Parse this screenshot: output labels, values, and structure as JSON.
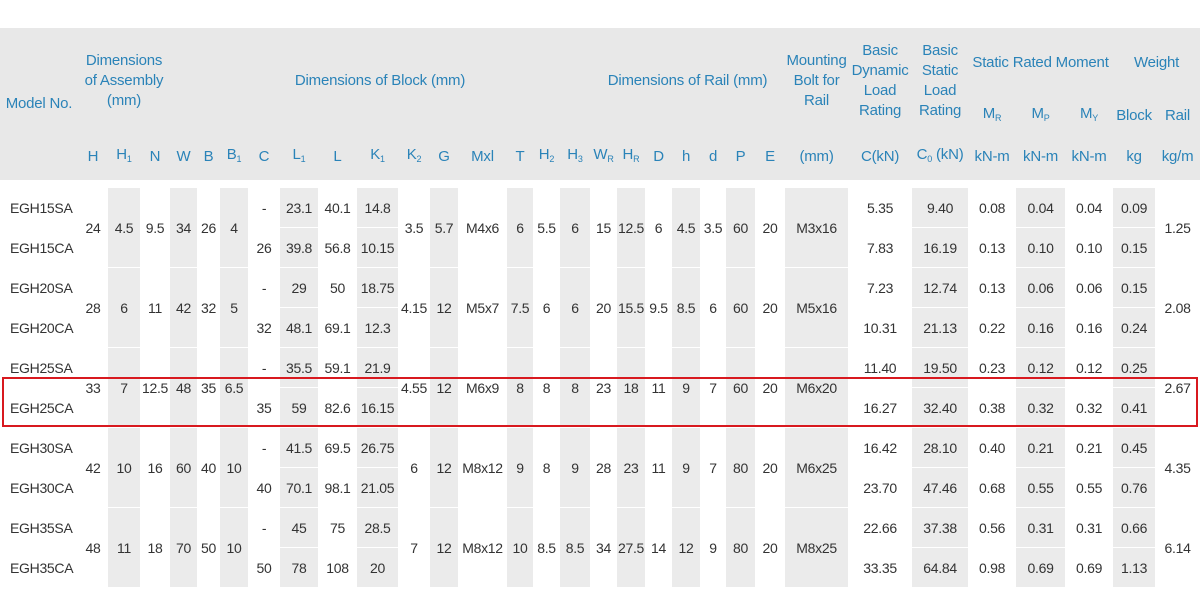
{
  "header": {
    "model": "Model No.",
    "assembly": "Dimensions of Assembly (mm)",
    "block": "Dimensions of Block (mm)",
    "rail": "Dimensions of Rail (mm)",
    "bolt": "Mounting Bolt for Rail",
    "dynamic": "Basic Dynamic Load Rating",
    "static": "Basic Static Load Rating",
    "moment": "Static Rated Moment",
    "weight": "Weight",
    "symbols": [
      {
        "t": "H"
      },
      {
        "t": "H",
        "s": "1"
      },
      {
        "t": "N"
      },
      {
        "t": "W"
      },
      {
        "t": "B"
      },
      {
        "t": "B",
        "s": "1"
      },
      {
        "t": "C"
      },
      {
        "t": "L",
        "s": "1"
      },
      {
        "t": "L"
      },
      {
        "t": "K",
        "s": "1"
      },
      {
        "t": "K",
        "s": "2"
      },
      {
        "t": "G"
      },
      {
        "t": "Mxl"
      },
      {
        "t": "T"
      },
      {
        "t": "H",
        "s": "2"
      },
      {
        "t": "H",
        "s": "3"
      },
      {
        "t": "W",
        "s": "R"
      },
      {
        "t": "H",
        "s": "R"
      },
      {
        "t": "D"
      },
      {
        "t": "h"
      },
      {
        "t": "d"
      },
      {
        "t": "P"
      },
      {
        "t": "E"
      },
      {
        "t": "(mm)"
      },
      {
        "t": "C(kN)"
      },
      {
        "t": "C",
        "s": "0",
        "u": " (kN)"
      }
    ],
    "moment_symbols": [
      {
        "t": "M",
        "s": "R"
      },
      {
        "t": "M",
        "s": "P"
      },
      {
        "t": "M",
        "s": "Y"
      }
    ],
    "moment_units": [
      "kN-m",
      "kN-m",
      "kN-m"
    ],
    "weight_symbols": [
      "Block",
      "Rail"
    ],
    "weight_units": [
      "kg",
      "kg/m"
    ]
  },
  "groups": [
    {
      "shared": [
        "24",
        "4.5",
        "9.5",
        "34",
        "26",
        "4"
      ],
      "mid": [
        "3.5",
        "5.7",
        "M4x6",
        "6",
        "5.5",
        "6",
        "15",
        "12.5",
        "6",
        "4.5",
        "3.5",
        "60",
        "20",
        "M3x16"
      ],
      "rail": "1.25",
      "rows": [
        {
          "model": "EGH15SA",
          "block": [
            "-",
            "23.1",
            "40.1",
            "14.8"
          ],
          "ratings": [
            "5.35",
            "9.40",
            "0.08",
            "0.04",
            "0.04",
            "0.09"
          ]
        },
        {
          "model": "EGH15CA",
          "block": [
            "26",
            "39.8",
            "56.8",
            "10.15"
          ],
          "ratings": [
            "7.83",
            "16.19",
            "0.13",
            "0.10",
            "0.10",
            "0.15"
          ]
        }
      ]
    },
    {
      "shared": [
        "28",
        "6",
        "11",
        "42",
        "32",
        "5"
      ],
      "mid": [
        "4.15",
        "12",
        "M5x7",
        "7.5",
        "6",
        "6",
        "20",
        "15.5",
        "9.5",
        "8.5",
        "6",
        "60",
        "20",
        "M5x16"
      ],
      "rail": "2.08",
      "rows": [
        {
          "model": "EGH20SA",
          "block": [
            "-",
            "29",
            "50",
            "18.75"
          ],
          "ratings": [
            "7.23",
            "12.74",
            "0.13",
            "0.06",
            "0.06",
            "0.15"
          ]
        },
        {
          "model": "EGH20CA",
          "block": [
            "32",
            "48.1",
            "69.1",
            "12.3"
          ],
          "ratings": [
            "10.31",
            "21.13",
            "0.22",
            "0.16",
            "0.16",
            "0.24"
          ]
        }
      ]
    },
    {
      "shared": [
        "33",
        "7",
        "12.5",
        "48",
        "35",
        "6.5"
      ],
      "mid": [
        "4.55",
        "12",
        "M6x9",
        "8",
        "8",
        "8",
        "23",
        "18",
        "11",
        "9",
        "7",
        "60",
        "20",
        "M6x20"
      ],
      "rail": "2.67",
      "rows": [
        {
          "model": "EGH25SA",
          "block": [
            "-",
            "35.5",
            "59.1",
            "21.9"
          ],
          "ratings": [
            "11.40",
            "19.50",
            "0.23",
            "0.12",
            "0.12",
            "0.25"
          ]
        },
        {
          "model": "EGH25CA",
          "block": [
            "35",
            "59",
            "82.6",
            "16.15"
          ],
          "ratings": [
            "16.27",
            "32.40",
            "0.38",
            "0.32",
            "0.32",
            "0.41"
          ]
        }
      ]
    },
    {
      "shared": [
        "42",
        "10",
        "16",
        "60",
        "40",
        "10"
      ],
      "mid": [
        "6",
        "12",
        "M8x12",
        "9",
        "8",
        "9",
        "28",
        "23",
        "11",
        "9",
        "7",
        "80",
        "20",
        "M6x25"
      ],
      "rail": "4.35",
      "rows": [
        {
          "model": "EGH30SA",
          "block": [
            "-",
            "41.5",
            "69.5",
            "26.75"
          ],
          "ratings": [
            "16.42",
            "28.10",
            "0.40",
            "0.21",
            "0.21",
            "0.45"
          ]
        },
        {
          "model": "EGH30CA",
          "block": [
            "40",
            "70.1",
            "98.1",
            "21.05"
          ],
          "ratings": [
            "23.70",
            "47.46",
            "0.68",
            "0.55",
            "0.55",
            "0.76"
          ]
        }
      ]
    },
    {
      "shared": [
        "48",
        "11",
        "18",
        "70",
        "50",
        "10"
      ],
      "mid": [
        "7",
        "12",
        "M8x12",
        "10",
        "8.5",
        "8.5",
        "34",
        "27.5",
        "14",
        "12",
        "9",
        "80",
        "20",
        "M8x25"
      ],
      "rail": "6.14",
      "rows": [
        {
          "model": "EGH35SA",
          "block": [
            "-",
            "45",
            "75",
            "28.5"
          ],
          "ratings": [
            "22.66",
            "37.38",
            "0.56",
            "0.31",
            "0.31",
            "0.66"
          ]
        },
        {
          "model": "EGH35CA",
          "block": [
            "50",
            "78",
            "108",
            "20"
          ],
          "ratings": [
            "33.35",
            "64.84",
            "0.98",
            "0.69",
            "0.69",
            "1.13"
          ]
        }
      ]
    }
  ],
  "highlight": "EGH25CA"
}
